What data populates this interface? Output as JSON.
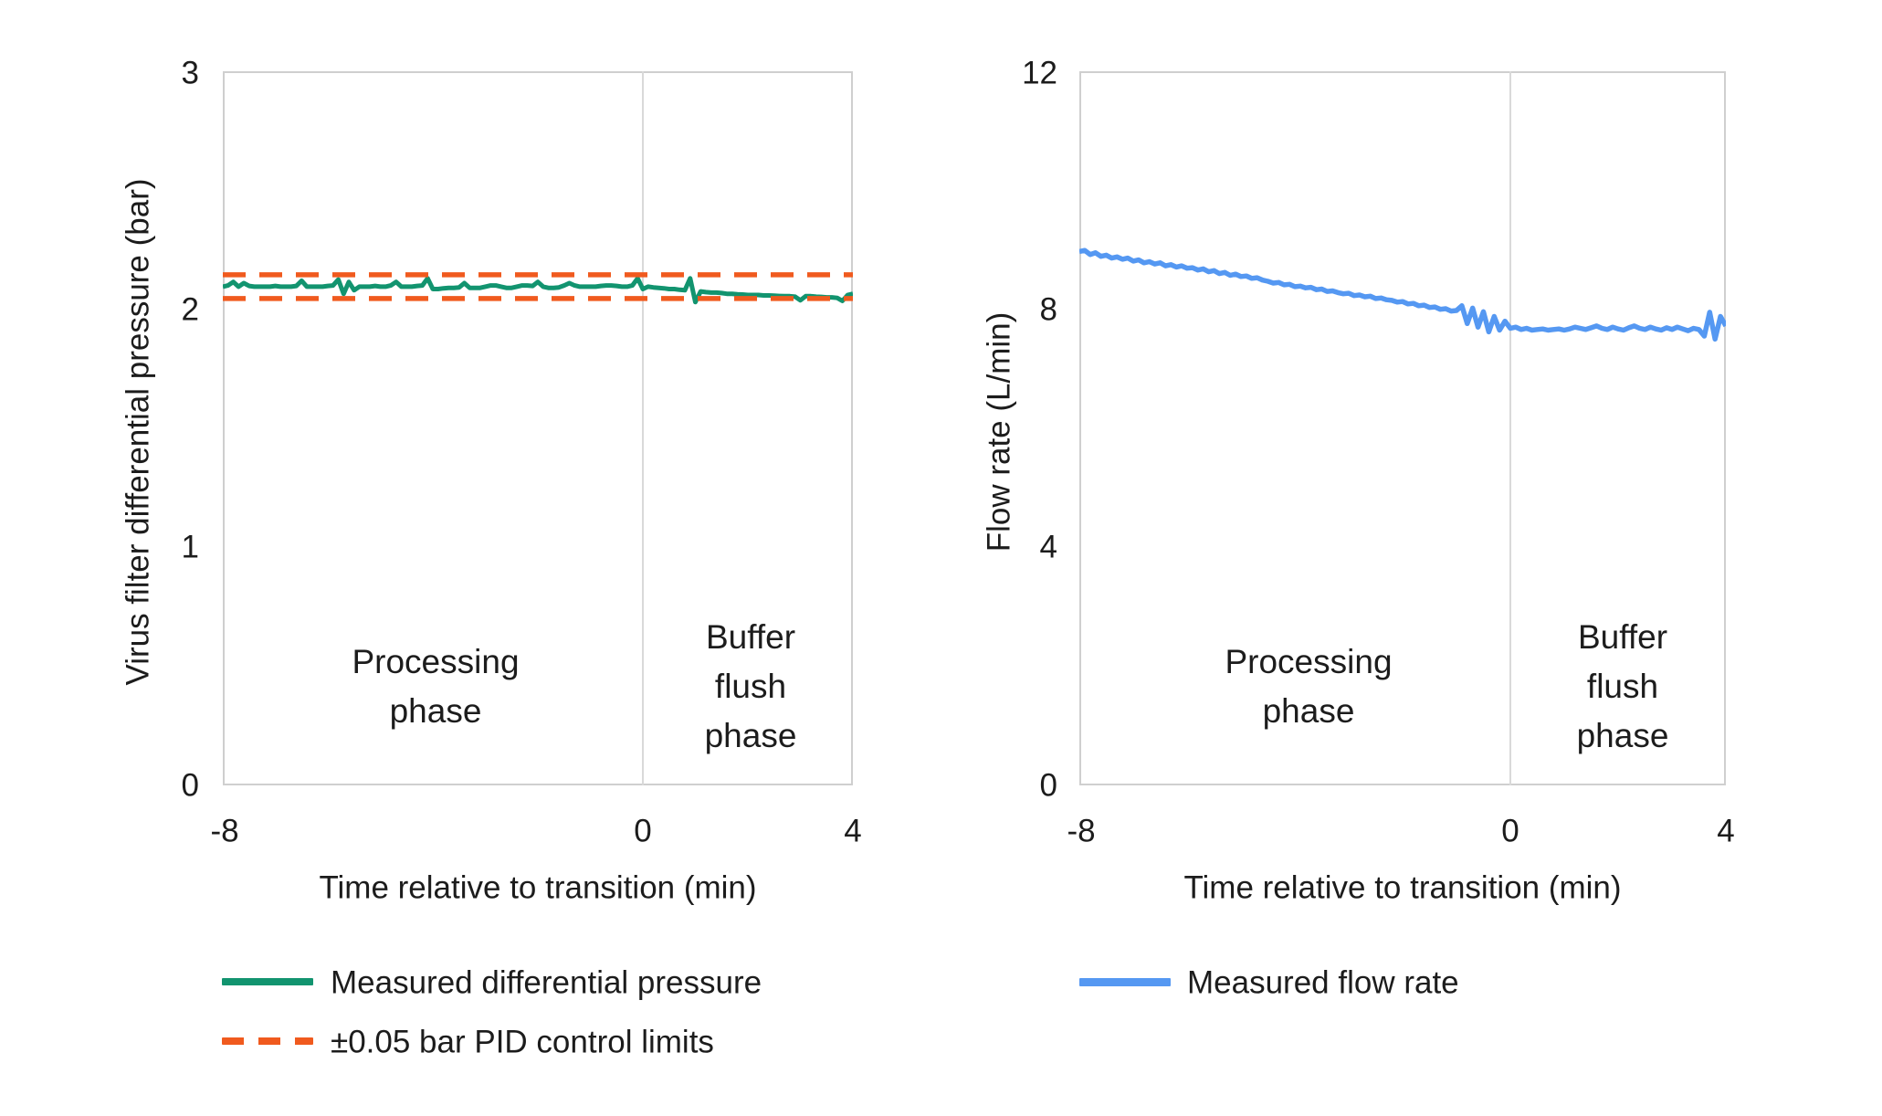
{
  "left_chart": {
    "y_axis_title": "Virus filter differential pressure (bar)",
    "x_axis_title": "Time relative to transition (min)",
    "y_ticks": {
      "t3": "3",
      "t2": "2",
      "t1": "1",
      "t0": "0"
    },
    "x_ticks": {
      "neg8": "-8",
      "zero": "0",
      "four": "4"
    },
    "processing_phase": {
      "line1": "Processing",
      "line2": "phase"
    },
    "buffer_phase": {
      "line1": "Buffer",
      "line2": "flush",
      "line3": "phase"
    }
  },
  "right_chart": {
    "y_axis_title": "Flow rate (L/min)",
    "x_axis_title": "Time relative to transition (min)",
    "y_ticks": {
      "t12": "12",
      "t8": "8",
      "t4": "4",
      "t0": "0"
    },
    "x_ticks": {
      "neg8": "-8",
      "zero": "0",
      "four": "4"
    },
    "processing_phase": {
      "line1": "Processing",
      "line2": "phase"
    },
    "buffer_phase": {
      "line1": "Buffer",
      "line2": "flush",
      "line3": "phase"
    }
  },
  "legend": {
    "measured_pressure": "Measured differential pressure",
    "pid_limits": "±0.05 bar PID control limits",
    "measured_flow": "Measured flow rate"
  },
  "colors": {
    "pressure_green": "#12946f",
    "limit_orange": "#f05a1e",
    "flow_blue": "#5598f2",
    "gridline": "#d9d9d9",
    "plot_border": "#cfcfcf",
    "text": "#1c1c1c"
  },
  "chart_data": [
    {
      "type": "line",
      "title": "",
      "xlabel": "Time relative to transition (min)",
      "ylabel": "Virus filter differential pressure (bar)",
      "xlim": [
        -8,
        4
      ],
      "ylim": [
        0,
        3
      ],
      "x_tick_values": [
        -8,
        0,
        4
      ],
      "y_tick_values": [
        0,
        1,
        2,
        3
      ],
      "gridlines_x": [
        0
      ],
      "annotations": [
        "Processing phase (t < 0)",
        "Buffer flush phase (t > 0)"
      ],
      "x_start": -8,
      "x_step": 0.1,
      "series": [
        {
          "name": "Measured differential pressure",
          "color": "#12946f",
          "width": 5,
          "values": [
            2.095,
            2.1,
            2.115,
            2.095,
            2.11,
            2.098,
            2.095,
            2.095,
            2.095,
            2.095,
            2.098,
            2.095,
            2.095,
            2.095,
            2.098,
            2.12,
            2.095,
            2.095,
            2.095,
            2.095,
            2.098,
            2.1,
            2.125,
            2.065,
            2.115,
            2.08,
            2.095,
            2.095,
            2.095,
            2.098,
            2.095,
            2.095,
            2.1,
            2.115,
            2.095,
            2.095,
            2.095,
            2.098,
            2.1,
            2.13,
            2.085,
            2.085,
            2.088,
            2.09,
            2.09,
            2.092,
            2.11,
            2.09,
            2.09,
            2.09,
            2.095,
            2.1,
            2.1,
            2.095,
            2.09,
            2.09,
            2.095,
            2.1,
            2.1,
            2.098,
            2.115,
            2.095,
            2.09,
            2.09,
            2.092,
            2.1,
            2.11,
            2.1,
            2.095,
            2.095,
            2.095,
            2.095,
            2.098,
            2.1,
            2.1,
            2.098,
            2.095,
            2.095,
            2.1,
            2.13,
            2.085,
            2.095,
            2.092,
            2.09,
            2.088,
            2.085,
            2.085,
            2.082,
            2.08,
            2.13,
            2.03,
            2.075,
            2.072,
            2.07,
            2.07,
            2.068,
            2.065,
            2.065,
            2.063,
            2.062,
            2.06,
            2.06,
            2.06,
            2.058,
            2.058,
            2.057,
            2.056,
            2.055,
            2.055,
            2.053,
            2.038,
            2.055,
            2.055,
            2.053,
            2.052,
            2.05,
            2.05,
            2.048,
            2.035,
            2.06,
            2.065
          ]
        },
        {
          "name": "Upper PID control limit (+0.05 bar)",
          "color": "#f05a1e",
          "width": 5.5,
          "dash": "25 15",
          "x": [
            -8,
            4
          ],
          "values": [
            2.145,
            2.145
          ]
        },
        {
          "name": "Lower PID control limit (-0.05 bar)",
          "color": "#f05a1e",
          "width": 5.5,
          "dash": "25 15",
          "x": [
            -8,
            4
          ],
          "values": [
            2.045,
            2.045
          ]
        }
      ]
    },
    {
      "type": "line",
      "title": "",
      "xlabel": "Time relative to transition (min)",
      "ylabel": "Flow rate (L/min)",
      "xlim": [
        -8,
        4
      ],
      "ylim": [
        0,
        12
      ],
      "x_tick_values": [
        -8,
        0,
        4
      ],
      "y_tick_values": [
        0,
        4,
        8,
        12
      ],
      "gridlines_x": [
        0
      ],
      "annotations": [
        "Processing phase (t < 0)",
        "Buffer flush phase (t > 0)"
      ],
      "x_start": -8,
      "x_step": 0.1,
      "series": [
        {
          "name": "Measured flow rate",
          "color": "#5598f2",
          "width": 5.5,
          "values": [
            8.97,
            8.99,
            8.92,
            8.95,
            8.89,
            8.91,
            8.86,
            8.88,
            8.84,
            8.86,
            8.81,
            8.83,
            8.78,
            8.8,
            8.76,
            8.78,
            8.73,
            8.75,
            8.71,
            8.73,
            8.69,
            8.7,
            8.66,
            8.68,
            8.63,
            8.65,
            8.6,
            8.62,
            8.57,
            8.59,
            8.55,
            8.56,
            8.52,
            8.53,
            8.49,
            8.47,
            8.44,
            8.45,
            8.41,
            8.42,
            8.38,
            8.39,
            8.36,
            8.37,
            8.33,
            8.34,
            8.3,
            8.31,
            8.28,
            8.26,
            8.27,
            8.23,
            8.24,
            8.21,
            8.22,
            8.18,
            8.19,
            8.16,
            8.15,
            8.12,
            8.13,
            8.09,
            8.1,
            8.06,
            8.07,
            8.03,
            8.04,
            8.0,
            8.01,
            7.97,
            7.98,
            8.06,
            7.76,
            8.02,
            7.7,
            7.96,
            7.62,
            7.88,
            7.65,
            7.8,
            7.68,
            7.7,
            7.66,
            7.68,
            7.65,
            7.66,
            7.67,
            7.65,
            7.66,
            7.67,
            7.65,
            7.67,
            7.7,
            7.68,
            7.66,
            7.69,
            7.72,
            7.68,
            7.66,
            7.7,
            7.67,
            7.65,
            7.69,
            7.72,
            7.68,
            7.66,
            7.7,
            7.67,
            7.65,
            7.69,
            7.66,
            7.7,
            7.67,
            7.64,
            7.68,
            7.66,
            7.55,
            7.95,
            7.5,
            7.88,
            7.72
          ]
        }
      ]
    }
  ]
}
